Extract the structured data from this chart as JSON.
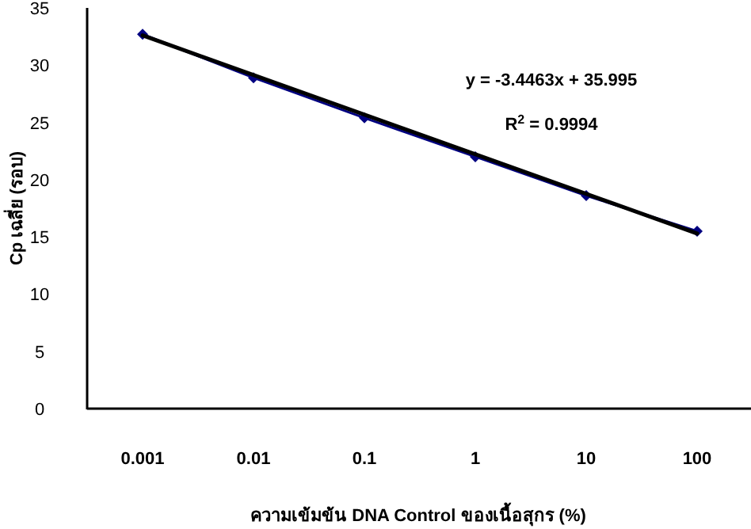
{
  "chart_data": {
    "type": "line",
    "xlabel": "ความเข้มข้น  DNA Control ของเนื้อสุกร (%)",
    "ylabel": "Cp เฉลี่ย (รอบ)",
    "categories": [
      "0.001",
      "0.01",
      "0.1",
      "1",
      "10",
      "100"
    ],
    "series": [
      {
        "color": "#000080",
        "marker": "diamond",
        "values": [
          32.7,
          28.9,
          25.4,
          22.0,
          18.6,
          15.5
        ]
      },
      {
        "color": "#000000",
        "x": [
          "0.001",
          "100"
        ],
        "values": [
          32.6,
          15.3
        ]
      }
    ],
    "ylim": [
      0,
      35
    ],
    "yticks": [
      0,
      5,
      10,
      15,
      20,
      25,
      30,
      35
    ],
    "annotations": [
      "y = -3.4463x + 35.995",
      "R$^{2}$ = 0.9994"
    ],
    "grid": false
  }
}
